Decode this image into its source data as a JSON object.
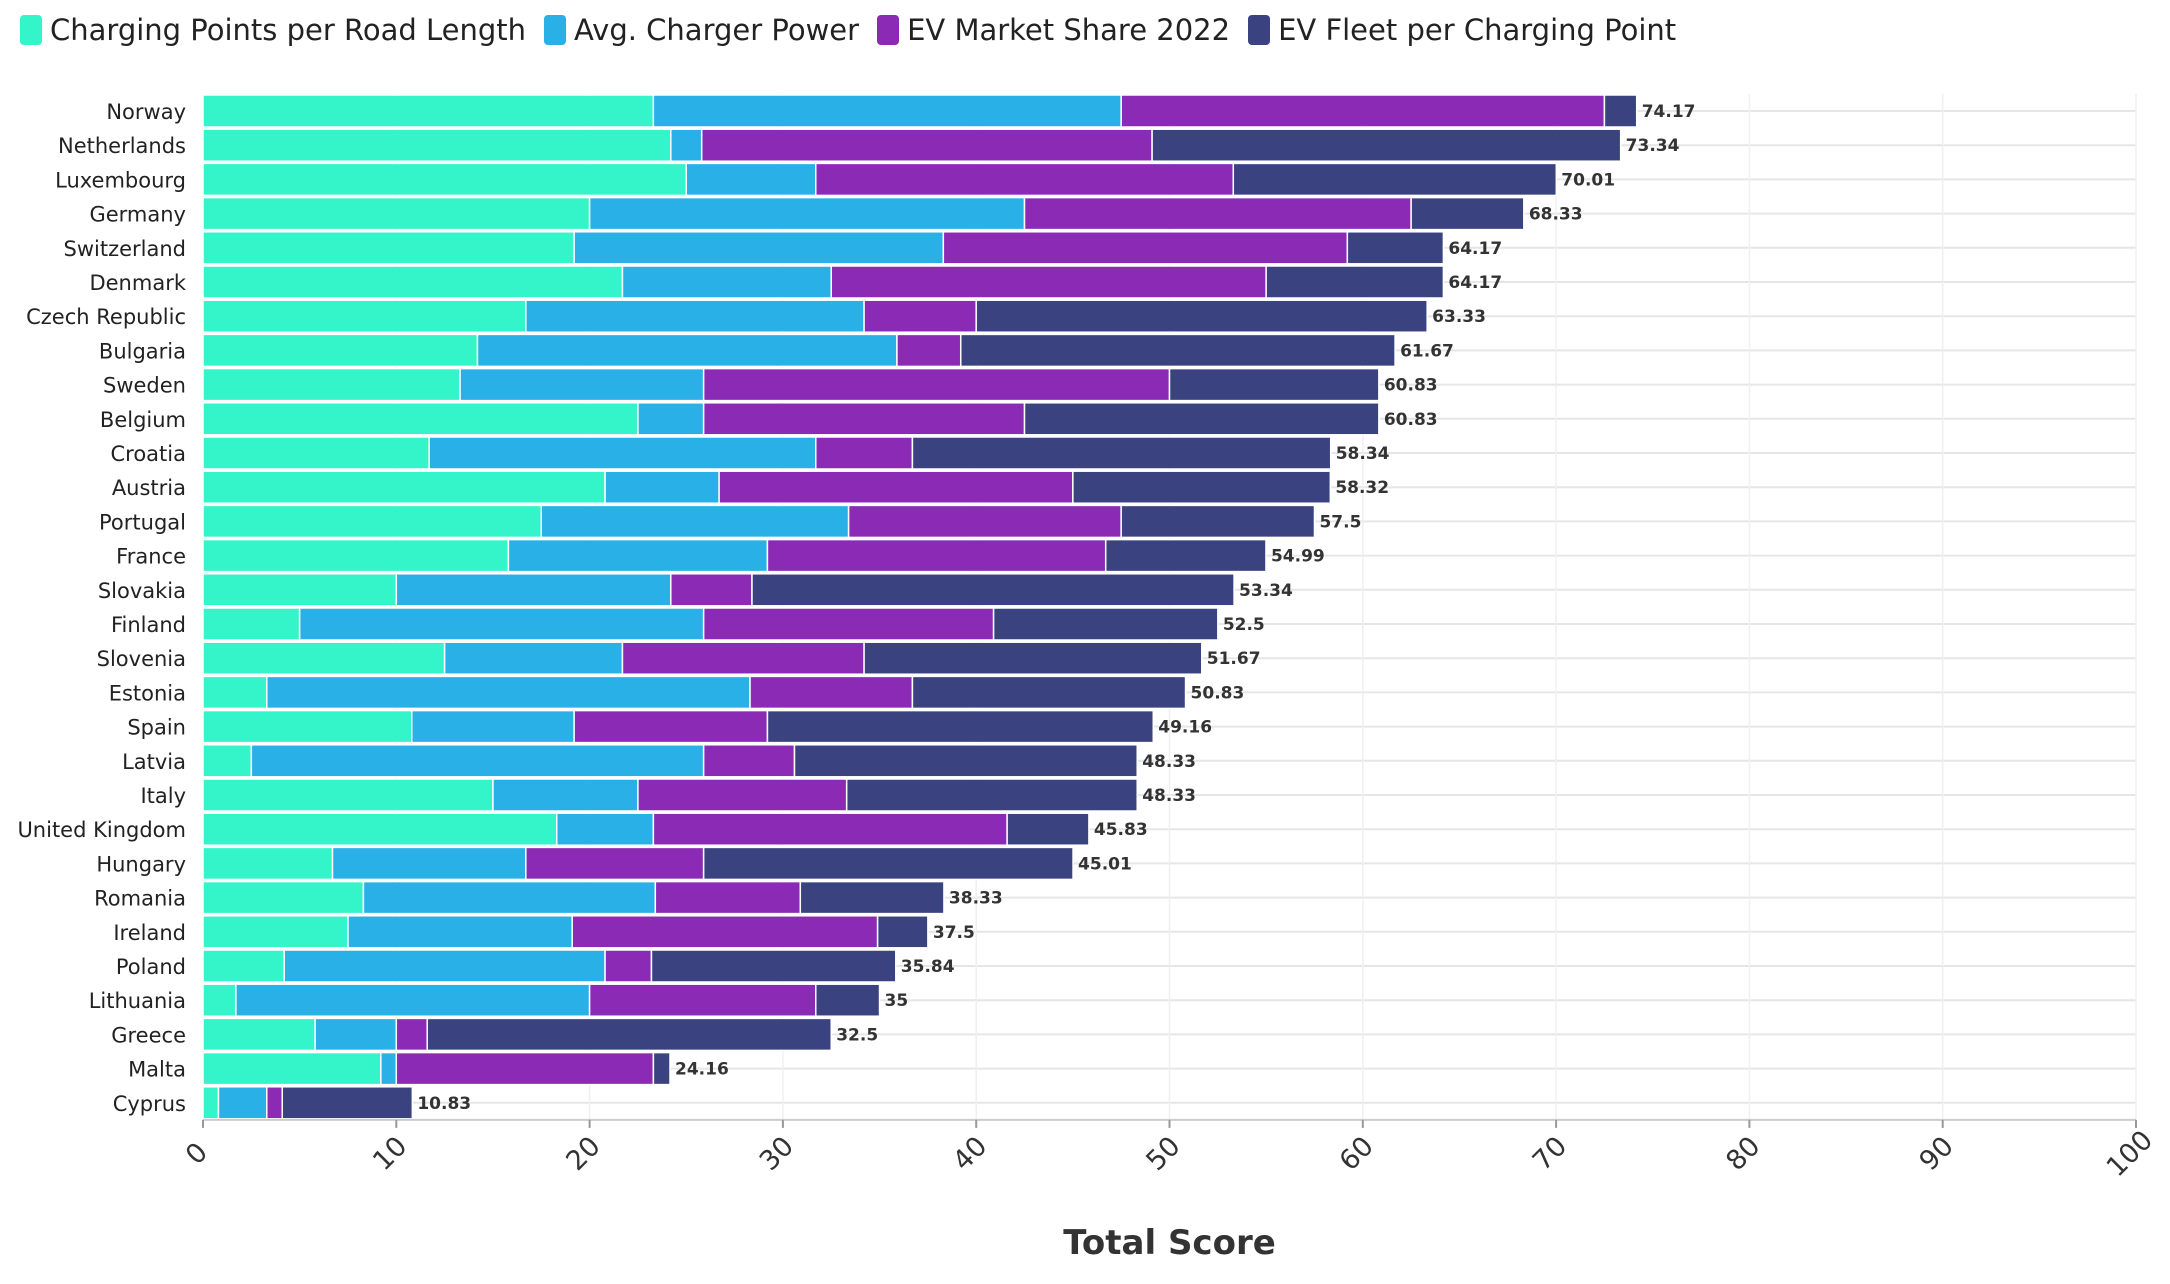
{
  "chart_data": {
    "type": "bar",
    "orientation": "horizontal",
    "stacked": true,
    "xlabel": "Total Score",
    "ylabel": "",
    "xlim": [
      0,
      100
    ],
    "xticks": [
      0,
      10,
      20,
      30,
      40,
      50,
      60,
      70,
      80,
      90,
      100
    ],
    "grid": true,
    "legend_position": "top-left",
    "categories": [
      "Norway",
      "Netherlands",
      "Luxembourg",
      "Germany",
      "Switzerland",
      "Denmark",
      "Czech Republic",
      "Bulgaria",
      "Sweden",
      "Belgium",
      "Croatia",
      "Austria",
      "Portugal",
      "France",
      "Slovakia",
      "Finland",
      "Slovenia",
      "Estonia",
      "Spain",
      "Latvia",
      "Italy",
      "United Kingdom",
      "Hungary",
      "Romania",
      "Ireland",
      "Poland",
      "Lithuania",
      "Greece",
      "Malta",
      "Cyprus"
    ],
    "totals": [
      "74.17",
      "73.34",
      "70.01",
      "68.33",
      "64.17",
      "64.17",
      "63.33",
      "61.67",
      "60.83",
      "60.83",
      "58.34",
      "58.32",
      "57.5",
      "54.99",
      "53.34",
      "52.5",
      "51.67",
      "50.83",
      "49.16",
      "48.33",
      "48.33",
      "45.83",
      "45.01",
      "38.33",
      "37.5",
      "35.84",
      "35",
      "32.5",
      "24.16",
      "10.83"
    ],
    "series": [
      {
        "name": "Charging Points per Road Length",
        "color": "#33f5c9",
        "values": [
          23.3,
          24.2,
          25.0,
          20.0,
          19.2,
          21.7,
          16.7,
          14.2,
          13.3,
          22.5,
          11.7,
          20.8,
          17.5,
          15.8,
          10.0,
          5.0,
          12.5,
          3.3,
          10.8,
          2.5,
          15.0,
          18.3,
          6.7,
          8.3,
          7.5,
          4.2,
          1.7,
          5.8,
          9.2,
          0.8
        ]
      },
      {
        "name": "Avg. Charger Power",
        "color": "#29b0e6",
        "values": [
          24.2,
          1.6,
          6.7,
          22.5,
          19.1,
          10.8,
          17.5,
          21.7,
          12.6,
          3.4,
          20.0,
          5.9,
          15.9,
          13.4,
          14.2,
          20.9,
          9.2,
          25.0,
          8.4,
          23.4,
          7.5,
          5.0,
          10.0,
          15.1,
          11.6,
          16.6,
          18.3,
          4.2,
          0.8,
          2.5
        ]
      },
      {
        "name": "EV Market Share 2022",
        "color": "#8a2ab5",
        "values": [
          25.0,
          23.3,
          21.6,
          20.0,
          20.9,
          22.5,
          5.8,
          3.3,
          24.1,
          16.6,
          5.0,
          18.3,
          14.1,
          17.5,
          4.2,
          15.0,
          12.5,
          8.4,
          10.0,
          4.7,
          10.8,
          18.3,
          9.2,
          7.5,
          15.8,
          2.4,
          11.7,
          1.6,
          13.3,
          0.8
        ]
      },
      {
        "name": "EV Fleet per Charging Point",
        "color": "#3a4380",
        "values": [
          1.67,
          24.24,
          16.71,
          5.83,
          4.97,
          9.17,
          23.33,
          22.47,
          10.83,
          18.33,
          21.64,
          13.32,
          10.0,
          8.29,
          24.94,
          11.6,
          17.47,
          14.13,
          19.96,
          17.73,
          15.03,
          4.23,
          19.11,
          7.43,
          2.6,
          12.64,
          3.3,
          20.9,
          0.86,
          6.73
        ]
      }
    ]
  }
}
